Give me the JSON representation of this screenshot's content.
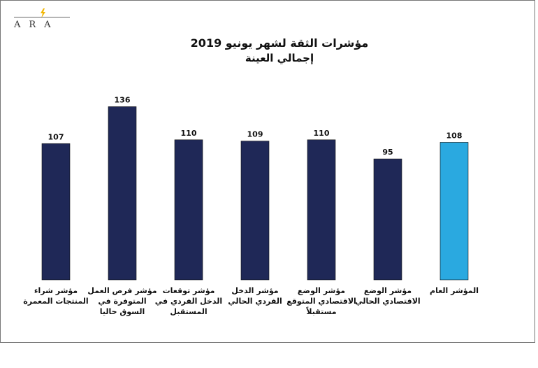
{
  "logo": {
    "text": "ARA"
  },
  "chart_data": {
    "type": "bar",
    "title": "مؤشرات الثقة لشهر يونيو 2019",
    "subtitle": "إجمالي العينة",
    "xlabel": "",
    "ylabel": "",
    "ylim": [
      0,
      150
    ],
    "grid": false,
    "legend": "none",
    "categories": [
      "مؤشر شراء المنتجات المعمرة",
      "مؤشر فرص العمل المتوفرة في السوق حاليا",
      "مؤشر توقعات الدخل الفردي في المستقبل",
      "مؤشر الدخل الفردي الحالي",
      "مؤشر الوضع الاقتصادي المتوقع مستقبلاً",
      "مؤشر الوضع الاقتصادي الحالي",
      "المؤشر العام"
    ],
    "values": [
      107,
      136,
      110,
      109,
      110,
      95,
      108
    ],
    "colors": [
      "#1f2857",
      "#1f2857",
      "#1f2857",
      "#1f2857",
      "#1f2857",
      "#1f2857",
      "#2aa9e0"
    ]
  }
}
